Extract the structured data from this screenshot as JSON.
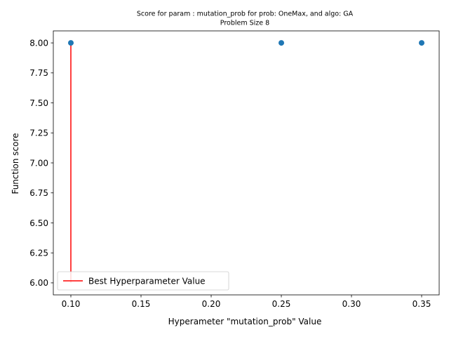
{
  "chart_data": {
    "type": "scatter",
    "title_line1": "Score for param : mutation_prob for prob: OneMax, and algo: GA",
    "title_line2": "Problem Size 8",
    "xlabel": "Hyperameter \"mutation_prob\" Value",
    "ylabel": "Function score",
    "xlim": [
      0.0875,
      0.3625
    ],
    "ylim": [
      5.9,
      8.1
    ],
    "x_ticks": [
      0.1,
      0.15,
      0.2,
      0.25,
      0.3,
      0.35
    ],
    "x_tick_labels": [
      "0.10",
      "0.15",
      "0.20",
      "0.25",
      "0.30",
      "0.35"
    ],
    "y_ticks": [
      6.0,
      6.25,
      6.5,
      6.75,
      7.0,
      7.25,
      7.5,
      7.75,
      8.0
    ],
    "y_tick_labels": [
      "6.00",
      "6.25",
      "6.50",
      "6.75",
      "7.00",
      "7.25",
      "7.50",
      "7.75",
      "8.00"
    ],
    "series": [
      {
        "type": "scatter",
        "color": "#1f77b4",
        "points": [
          {
            "x": 0.1,
            "y": 8.0
          },
          {
            "x": 0.25,
            "y": 8.0
          },
          {
            "x": 0.35,
            "y": 8.0
          }
        ]
      },
      {
        "type": "vline",
        "name": "Best Hyperparameter Value",
        "color": "#ff0000",
        "x": 0.1,
        "ymin": 6.0,
        "ymax": 8.0
      }
    ],
    "legend": {
      "position": "lower-left",
      "entries": [
        "Best Hyperparameter Value"
      ]
    },
    "grid": false
  }
}
